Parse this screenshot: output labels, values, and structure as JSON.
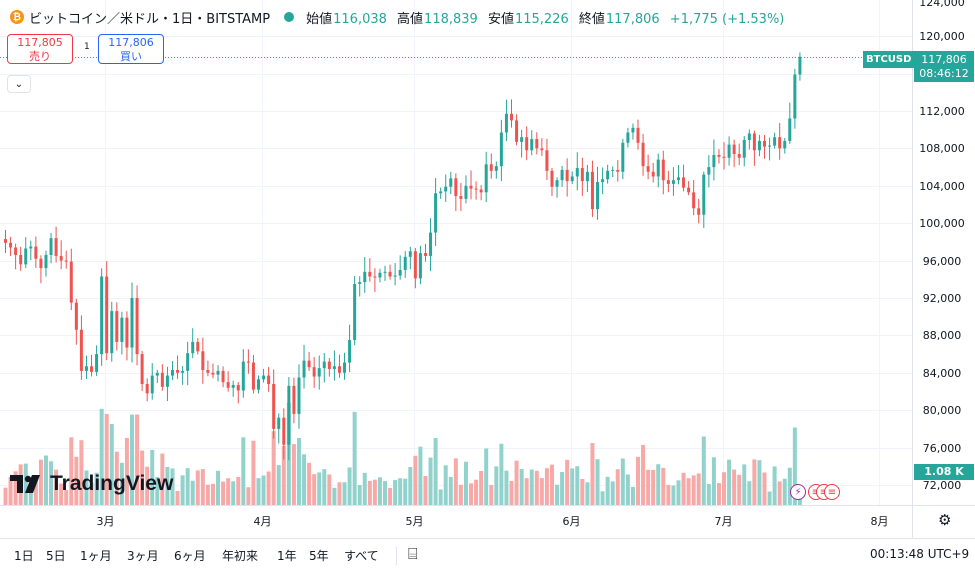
{
  "header": {
    "coin_icon": "bitcoin-icon",
    "coin_glyph": "₿",
    "symbol_title": "ビットコイン／米ドル・1日・BITSTAMP",
    "market_status_icon": "market-open-dot",
    "ohlc": [
      {
        "key": "始値",
        "value": "116,038"
      },
      {
        "key": "高値",
        "value": "118,839"
      },
      {
        "key": "安値",
        "value": "115,226"
      },
      {
        "key": "終値",
        "value": "117,806"
      },
      {
        "key": "",
        "value": "+1,775 (+1.53%)"
      }
    ]
  },
  "trade": {
    "sell_price": "117,805",
    "sell_label": "売り",
    "spread": "1",
    "buy_price": "117,806",
    "buy_label": "買い",
    "collapse_glyph": "⌄"
  },
  "price_scale": {
    "ticker": "BTCUSD",
    "last_price": "117,806",
    "countdown": "08:46:12",
    "volume_label": "1.08 K",
    "top_partial": "124,000"
  },
  "events": {
    "glyph_flash": "⚡",
    "glyph_us": "≡"
  },
  "logo_text": "TradingView",
  "bottom_bar": {
    "timeframes": [
      "1日",
      "5日",
      "1ヶ月",
      "3ヶ月",
      "6ヶ月",
      "年初来",
      "1年",
      "5年",
      "すべて"
    ],
    "calendar_glyph": "⌸",
    "clock": "00:13:48 UTC+9",
    "gear_glyph": "⚙"
  },
  "colors": {
    "up": "#26a69a",
    "down": "#ef5350",
    "vol_up": "#92d2cc",
    "vol_down": "#f7a9a7",
    "grid": "#f0f3fa"
  },
  "chart_data": {
    "type": "candlestick",
    "title": "ビットコイン／米ドル・1日・BITSTAMP",
    "y_ticks": [
      72000,
      76000,
      80000,
      84000,
      88000,
      92000,
      96000,
      100000,
      104000,
      108000,
      112000,
      116000,
      120000
    ],
    "y_tick_labels": [
      "72,000",
      "76,000",
      "80,000",
      "84,000",
      "88,000",
      "92,000",
      "96,000",
      "100,000",
      "104,000",
      "108,000",
      "112,000",
      "116,000",
      "120,000"
    ],
    "ylim": [
      70000,
      124000
    ],
    "x_labels": [
      "3月",
      "4月",
      "5月",
      "6月",
      "7月",
      "8月"
    ],
    "x_label_dates": [
      "2025-03-01",
      "2025-04-01",
      "2025-05-01",
      "2025-06-01",
      "2025-07-01",
      "2025-08-01"
    ],
    "x_start_date": "2025-02-09",
    "grid": true,
    "last_price": 117806,
    "closes": [
      97900,
      97400,
      96600,
      95600,
      97300,
      97500,
      96200,
      95200,
      96600,
      98400,
      96500,
      96000,
      95900,
      91500,
      88600,
      84200,
      84700,
      84100,
      86000,
      94300,
      86100,
      90600,
      87300,
      89900,
      86700,
      92000,
      86000,
      82800,
      81800,
      83700,
      84000,
      82500,
      83700,
      84300,
      84000,
      84200,
      86100,
      87300,
      86300,
      84300,
      84000,
      83800,
      84200,
      83000,
      82400,
      82700,
      82100,
      85200,
      85100,
      82200,
      83300,
      83700,
      82800,
      78000,
      79200,
      76300,
      82600,
      79600,
      83500,
      85300,
      84600,
      83600,
      84500,
      85200,
      84400,
      84700,
      84000,
      85100,
      87500,
      93500,
      93700,
      94800,
      94300,
      94200,
      94700,
      94800,
      94300,
      94400,
      95000,
      96400,
      97000,
      94100,
      96800,
      96500,
      99000,
      103200,
      103400,
      103900,
      104800,
      102900,
      102600,
      104000,
      103700,
      103600,
      103300,
      106300,
      105600,
      106100,
      109700,
      111700,
      111000,
      108700,
      109200,
      107800,
      109000,
      108000,
      107800,
      105600,
      103900,
      104600,
      105700,
      104500,
      105000,
      105900,
      104500,
      105500,
      101500,
      104400,
      104700,
      105600,
      105700,
      105500,
      108600,
      109700,
      110200,
      108600,
      106100,
      105500,
      105000,
      106800,
      104600,
      104200,
      104600,
      104900,
      103800,
      103300,
      101600,
      100900,
      105200,
      106000,
      107300,
      107100,
      107000,
      108400,
      107400,
      107000,
      108900,
      109600,
      107800,
      108800,
      108200,
      108300,
      109200,
      108000,
      108800,
      111200,
      115900,
      117800
    ],
    "volume_unit": "K",
    "last_volume": 1.08
  }
}
